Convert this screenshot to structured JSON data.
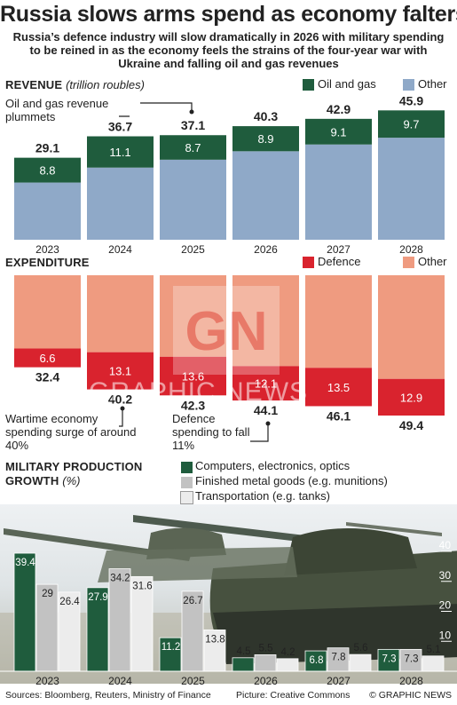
{
  "headline": "Russia slows arms spend as economy falters",
  "subhead": "Russia’s defence industry will slow dramatically in 2026 with military spending to be reined in as the economy feels the strains of the four-year war with Ukraine and falling oil and gas revenues",
  "watermark": "GRAPHIC NEWS",
  "watermark_logo": "GN",
  "colors": {
    "oil_gas": "#1f5c3d",
    "revenue_other": "#8fa9c8",
    "defence": "#d9232e",
    "expenditure_other": "#ef9b80",
    "computers": "#1f5c3d",
    "metal": "#c2c2c2",
    "transport": "#ececec"
  },
  "footer": {
    "sources": "Sources: Bloomberg, Reuters, Ministry of Finance",
    "picture": "Picture: Creative Commons",
    "credit": "© GRAPHIC NEWS"
  },
  "revenue_section": {
    "title": "REVENUE",
    "unit": "(trillion roubles)",
    "annotation": "Oil and gas revenue plummets"
  },
  "expenditure_section": {
    "title": "EXPENDITURE",
    "annotation_left": "Wartime economy spending surge of around 40%",
    "annotation_right": "Defence spending to fall 11%"
  },
  "production_section": {
    "title": "MILITARY PRODUCTION",
    "title2": "GROWTH",
    "unit": "(%)"
  },
  "chart_data": [
    {
      "name": "revenue",
      "type": "bar",
      "stacked": true,
      "title": "REVENUE",
      "unit": "(trillion roubles)",
      "categories": [
        "2023",
        "2024",
        "2025",
        "2026",
        "2027",
        "2028"
      ],
      "series": [
        {
          "name": "Oil and gas",
          "values": [
            8.8,
            11.1,
            8.7,
            8.9,
            9.1,
            9.7
          ]
        },
        {
          "name": "Other",
          "values": [
            20.3,
            25.6,
            28.4,
            31.4,
            33.8,
            36.2
          ]
        }
      ],
      "totals": [
        29.1,
        36.7,
        37.1,
        40.3,
        42.9,
        45.9
      ],
      "ylim": [
        0,
        46
      ]
    },
    {
      "name": "expenditure",
      "type": "bar",
      "stacked": true,
      "title": "EXPENDITURE",
      "categories": [
        "2023",
        "2024",
        "2025",
        "2026",
        "2027",
        "2028"
      ],
      "series": [
        {
          "name": "Defence",
          "values": [
            6.6,
            13.1,
            13.6,
            12.1,
            13.5,
            12.9
          ]
        },
        {
          "name": "Other",
          "values": [
            25.8,
            27.1,
            28.7,
            32.0,
            32.6,
            36.5
          ]
        }
      ],
      "totals": [
        32.4,
        40.2,
        42.3,
        44.1,
        46.1,
        49.4
      ],
      "ylim": [
        0,
        49.4
      ]
    },
    {
      "name": "military_production_growth",
      "type": "bar",
      "title": "MILITARY PRODUCTION GROWTH",
      "unit": "(%)",
      "categories": [
        "2023",
        "2024",
        "2025",
        "2026",
        "2027",
        "2028"
      ],
      "series": [
        {
          "name": "Computers, electronics, optics",
          "values": [
            39.4,
            27.9,
            11.2,
            4.5,
            6.8,
            7.3
          ]
        },
        {
          "name": "Finished metal goods (e.g. munitions)",
          "values": [
            29,
            34.2,
            26.7,
            5.5,
            7.8,
            7.3
          ]
        },
        {
          "name": "Transportation (e.g. tanks)",
          "values": [
            26.4,
            31.6,
            13.8,
            4.2,
            5.6,
            5.1
          ]
        }
      ],
      "yticks": [
        "40",
        "30",
        "20",
        "10"
      ],
      "ylim": [
        0,
        40
      ]
    }
  ]
}
